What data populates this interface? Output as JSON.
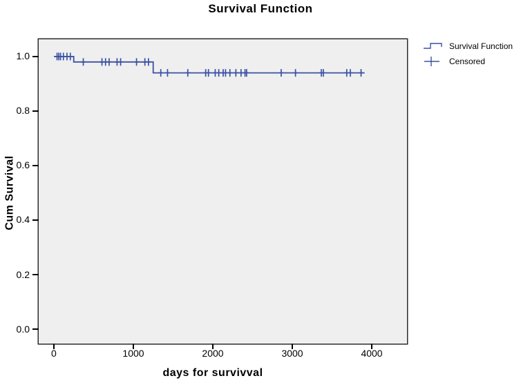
{
  "chart": {
    "title": "Survival Function",
    "legend": [
      {
        "label": "Survival Function",
        "symbol": "step-line-icon"
      },
      {
        "label": "Censored",
        "symbol": "plus-icon"
      }
    ],
    "colors": {
      "series": "#3A51A3",
      "plot_background": "#F0EFEF",
      "frame": "#2B2B2B",
      "text": "#000000"
    }
  },
  "chart_data": {
    "type": "line",
    "subtype": "kaplan_meier_step",
    "title": "Survival Function",
    "xlabel": "days for survivval",
    "ylabel": "Cum Survival",
    "x_ticks": [
      0,
      1000,
      2000,
      3000,
      4000
    ],
    "y_ticks": [
      1.0,
      0.8,
      0.6,
      0.4,
      0.2,
      0.0
    ],
    "y_tick_labels": [
      "1.0",
      "0.8",
      "0.6",
      "0.4",
      "0.2",
      "0.0"
    ],
    "xlim": [
      -191,
      4443
    ],
    "ylim": [
      -0.053,
      1.063
    ],
    "grid": false,
    "legend_position": "upper-right-outside",
    "series": [
      {
        "name": "Survival Function",
        "type": "step",
        "points": [
          [
            0,
            1.0
          ],
          [
            250,
            1.0
          ],
          [
            250,
            0.98
          ],
          [
            1250,
            0.98
          ],
          [
            1250,
            0.94
          ],
          [
            3910,
            0.94
          ]
        ]
      },
      {
        "name": "Censored",
        "type": "marker-plus",
        "points": [
          [
            40,
            1.0
          ],
          [
            62,
            1.0
          ],
          [
            84,
            1.0
          ],
          [
            120,
            1.0
          ],
          [
            165,
            1.0
          ],
          [
            207,
            1.0
          ],
          [
            370,
            0.98
          ],
          [
            605,
            0.98
          ],
          [
            650,
            0.98
          ],
          [
            695,
            0.98
          ],
          [
            795,
            0.98
          ],
          [
            840,
            0.98
          ],
          [
            1040,
            0.98
          ],
          [
            1145,
            0.98
          ],
          [
            1190,
            0.98
          ],
          [
            1345,
            0.94
          ],
          [
            1430,
            0.94
          ],
          [
            1685,
            0.94
          ],
          [
            1910,
            0.94
          ],
          [
            1945,
            0.94
          ],
          [
            2030,
            0.94
          ],
          [
            2075,
            0.94
          ],
          [
            2130,
            0.94
          ],
          [
            2160,
            0.94
          ],
          [
            2215,
            0.94
          ],
          [
            2290,
            0.94
          ],
          [
            2355,
            0.94
          ],
          [
            2405,
            0.94
          ],
          [
            2425,
            0.94
          ],
          [
            2860,
            0.94
          ],
          [
            3040,
            0.94
          ],
          [
            3365,
            0.94
          ],
          [
            3390,
            0.94
          ],
          [
            3685,
            0.94
          ],
          [
            3730,
            0.94
          ],
          [
            3865,
            0.94
          ]
        ]
      }
    ]
  }
}
